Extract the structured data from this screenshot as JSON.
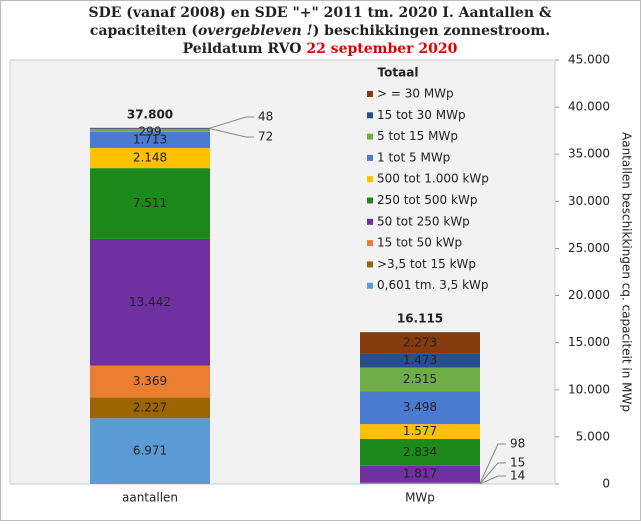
{
  "chart_data": {
    "type": "stacked_bar",
    "title": [
      "SDE (vanaf 2008) en SDE \"+\" 2011 tm. 2020 I. Aantallen &",
      "capaciteiten (",
      "overgebleven !",
      ") beschikkingen  zonnestroom.",
      "Peildatum RVO ",
      "22 september 2020"
    ],
    "y_axis_label": "Aantallen beschikkingen  cq. capaciteit in MWp",
    "categories": [
      "aantallen",
      "MWp"
    ],
    "series": [
      {
        "name": "0,601 tm. 3,5 kWp",
        "color": "#5b9bd5",
        "values": [
          6971,
          14
        ],
        "value_labels": [
          "6.971",
          "14"
        ]
      },
      {
        "name": ">3,5 tot 15 kWp",
        "color": "#9c6500",
        "values": [
          2227,
          15
        ],
        "value_labels": [
          "2.227",
          "15"
        ]
      },
      {
        "name": "15 tot 50 kWp",
        "color": "#ed7d31",
        "values": [
          3369,
          98
        ],
        "value_labels": [
          "3.369",
          "98"
        ]
      },
      {
        "name": "50 tot 250 kWp",
        "color": "#7030a0",
        "values": [
          13442,
          1817
        ],
        "value_labels": [
          "13.442",
          "1.817"
        ]
      },
      {
        "name": "250 tot 500 kWp",
        "color": "#1b8a1b",
        "values": [
          7511,
          2834
        ],
        "value_labels": [
          "7.511",
          "2.834"
        ]
      },
      {
        "name": "500 tot 1.000 kWp",
        "color": "#ffc000",
        "values": [
          2148,
          1577
        ],
        "value_labels": [
          "2.148",
          "1.577"
        ]
      },
      {
        "name": "1 tot 5 MWp",
        "color": "#4a7bd0",
        "values": [
          1713,
          3498
        ],
        "value_labels": [
          "1.713",
          "3.498"
        ]
      },
      {
        "name": "5 tot 15 MWp",
        "color": "#70ad47",
        "values": [
          299,
          2515
        ],
        "value_labels": [
          "299",
          "2.515"
        ]
      },
      {
        "name": "15 tot 30 MWp",
        "color": "#264f8c",
        "values": [
          72,
          1473
        ],
        "value_labels": [
          "72",
          "1.473"
        ]
      },
      {
        "name": "> = 30 MWp",
        "color": "#843c0c",
        "values": [
          48,
          2273
        ],
        "value_labels": [
          "48",
          "2.273"
        ]
      }
    ],
    "totals": {
      "name": "Totaal",
      "values": [
        37800,
        16115
      ],
      "value_labels": [
        "37.800",
        "16.115"
      ]
    },
    "ylim": [
      0,
      45000
    ],
    "yticks": [
      0,
      {
        "value": 5000,
        "label": "5.000"
      },
      {
        "value": 10000,
        "label": "10.000"
      },
      {
        "value": 15000,
        "label": "15.000"
      },
      {
        "value": 20000,
        "label": "20.000"
      },
      {
        "value": 25000,
        "label": "25.000"
      },
      {
        "value": 30000,
        "label": "30.000"
      },
      {
        "value": 35000,
        "label": "35.000"
      },
      {
        "value": 40000,
        "label": "40.000"
      },
      {
        "value": 45000,
        "label": "45.000"
      }
    ],
    "y_axis_side": "right",
    "grid": false
  }
}
